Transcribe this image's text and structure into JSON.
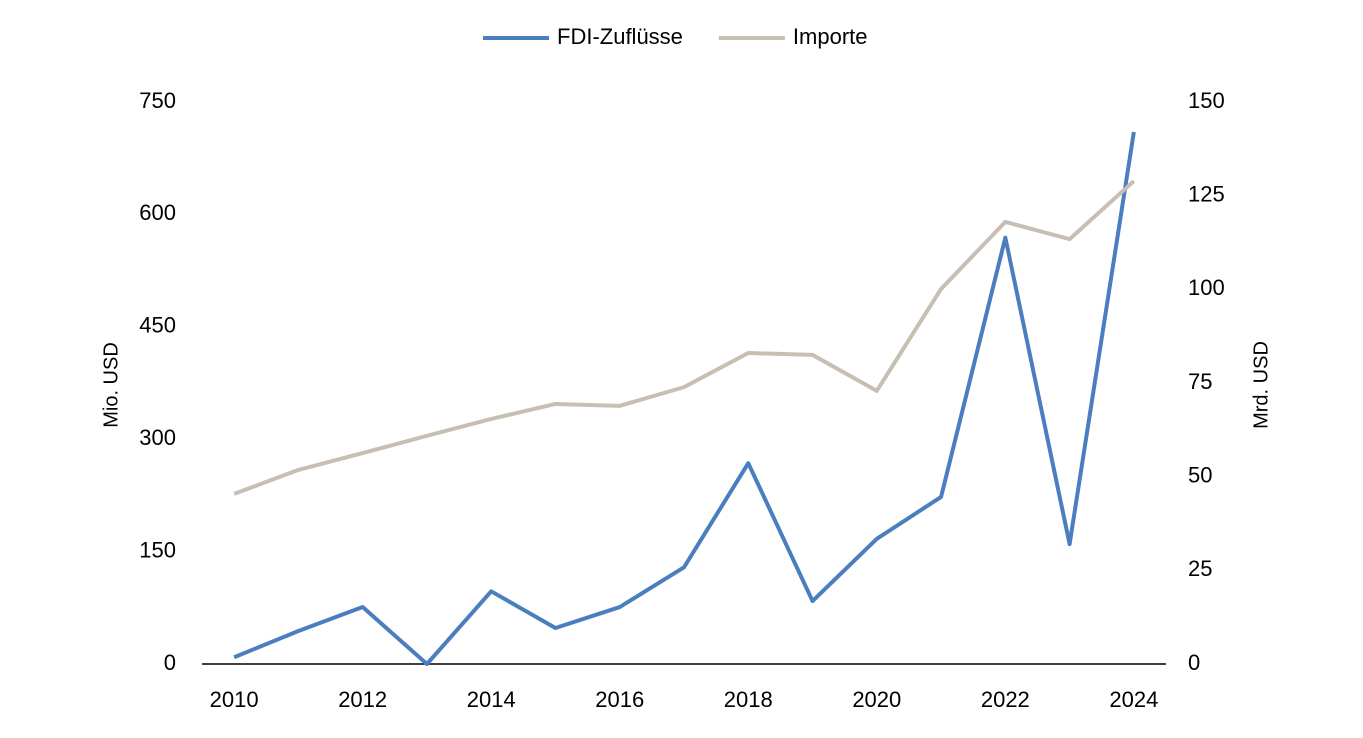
{
  "chart_data": {
    "type": "line",
    "x": [
      2010,
      2011,
      2012,
      2013,
      2014,
      2015,
      2016,
      2017,
      2018,
      2019,
      2020,
      2021,
      2022,
      2023,
      2024
    ],
    "series": [
      {
        "name": "FDI-Zuflüsse",
        "color": "#4a7ebf",
        "values": [
          9,
          44,
          76,
          0,
          97,
          48,
          76,
          129,
          268,
          84,
          167,
          223,
          569,
          160,
          710
        ]
      },
      {
        "name": "Importe",
        "color": "#c6bfb2",
        "axis": "y2",
        "values": [
          45.4,
          51.8,
          56.3,
          60.9,
          65.4,
          69.4,
          68.9,
          73.9,
          83.0,
          82.5,
          72.9,
          100.1,
          118.0,
          113.4,
          128.9
        ]
      }
    ],
    "xlim": [
      2009.5,
      2024.5
    ],
    "xticks": [
      2010,
      2012,
      2014,
      2016,
      2018,
      2020,
      2022,
      2024
    ],
    "ylim": [
      0,
      750
    ],
    "yticks": [
      0,
      150,
      300,
      450,
      600,
      750
    ],
    "y2lim": [
      0,
      150
    ],
    "y2ticks": [
      0,
      25,
      50,
      75,
      100,
      125,
      150
    ],
    "ylabel": "Mio. USD",
    "y2label": "Mrd. USD",
    "grid": false,
    "legend": "top"
  }
}
